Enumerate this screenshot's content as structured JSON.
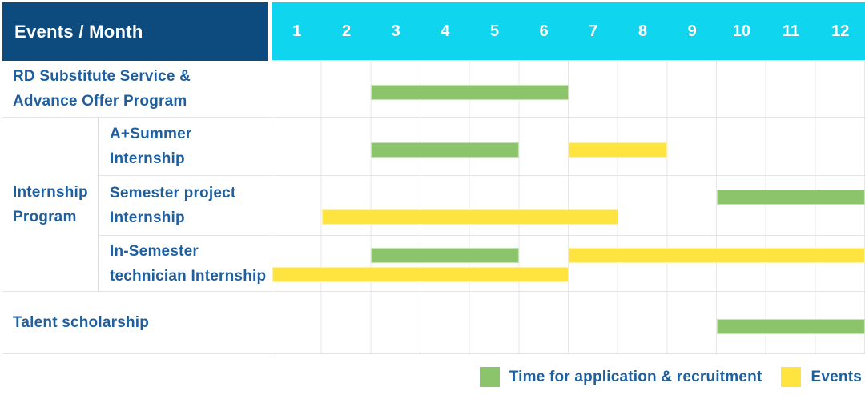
{
  "header": {
    "title": "Events / Month",
    "months": [
      "1",
      "2",
      "3",
      "4",
      "5",
      "6",
      "7",
      "8",
      "9",
      "10",
      "11",
      "12"
    ]
  },
  "colors": {
    "navy_header": "#0D4B7E",
    "cyan_header": "#10D5EF",
    "green_bar": "#8BC46A",
    "yellow_bar": "#FFE33E",
    "label_text": "#1E5FA0",
    "header_text": "#FFFFFF"
  },
  "legend": {
    "items": [
      {
        "label": "Time for application & recruitment",
        "color": "#8BC46A"
      },
      {
        "label": "Events",
        "color": "#FFE33E"
      }
    ]
  },
  "chart_data": {
    "type": "bar",
    "subtype": "gantt-schedule",
    "title": "Events / Month",
    "x_label": "Month",
    "x_ticks": [
      1,
      2,
      3,
      4,
      5,
      6,
      7,
      8,
      9,
      10,
      11,
      12
    ],
    "x_range": [
      1,
      12
    ],
    "grid": true,
    "legend_position": "bottom-right",
    "series": [
      {
        "name": "Time for application & recruitment",
        "color": "#8BC46A"
      },
      {
        "name": "Events",
        "color": "#FFE33E"
      }
    ],
    "group_labels": {
      "Internship Program": [
        "Internship",
        "Program"
      ]
    },
    "rows": [
      {
        "group": "",
        "label": "RD Substitute Service & Advance Offer Program",
        "label_lines": [
          "RD Substitute Service &",
          "Advance Offer Program"
        ],
        "bars": [
          {
            "series": "Time for application & recruitment",
            "start_month": 3,
            "end_month": 6,
            "lane": 0
          }
        ]
      },
      {
        "group": "Internship Program",
        "label": "A+Summer Internship",
        "label_lines": [
          "A+Summer",
          "Internship"
        ],
        "bars": [
          {
            "series": "Time for application & recruitment",
            "start_month": 3,
            "end_month": 5,
            "lane": 0
          },
          {
            "series": "Events",
            "start_month": 7,
            "end_month": 8,
            "lane": 0
          }
        ]
      },
      {
        "group": "Internship Program",
        "label": "Semester project Internship",
        "label_lines": [
          "Semester project",
          "Internship"
        ],
        "bars": [
          {
            "series": "Time for application & recruitment",
            "start_month": 10,
            "end_month": 12,
            "lane": 0
          },
          {
            "series": "Events",
            "start_month": 2,
            "end_month": 7,
            "lane": 1
          }
        ]
      },
      {
        "group": "Internship Program",
        "label": "In-Semester technician Internship",
        "label_lines": [
          "In-Semester",
          "technician Internship"
        ],
        "bars": [
          {
            "series": "Time for application & recruitment",
            "start_month": 3,
            "end_month": 5,
            "lane": 0
          },
          {
            "series": "Events",
            "start_month": 7,
            "end_month": 12,
            "lane": 0
          },
          {
            "series": "Events",
            "start_month": 1,
            "end_month": 6,
            "lane": 1
          }
        ]
      },
      {
        "group": "",
        "label": "Talent scholarship",
        "label_lines": [
          "Talent scholarship"
        ],
        "bars": [
          {
            "series": "Time for application & recruitment",
            "start_month": 10,
            "end_month": 12,
            "lane": 0
          }
        ]
      }
    ]
  }
}
